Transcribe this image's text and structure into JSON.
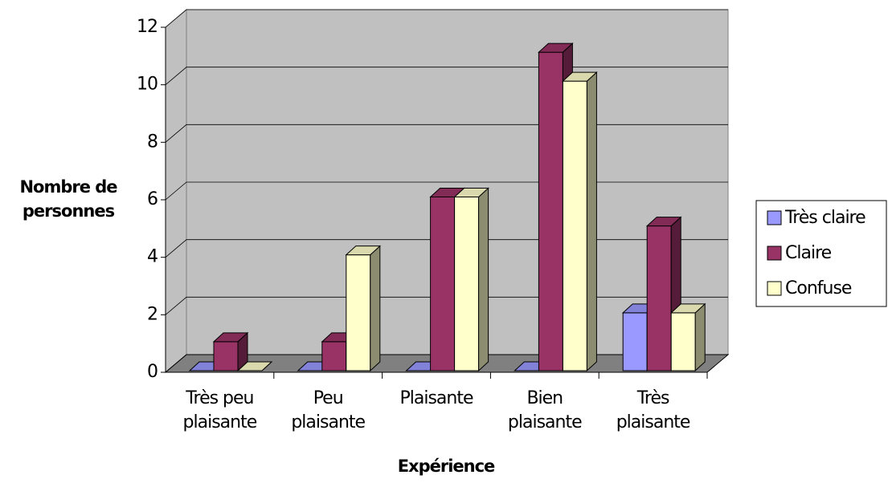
{
  "chart_data": {
    "type": "bar3d",
    "y_label": "Nombre de personnes",
    "x_label": "Expérience",
    "categories": [
      "Très peu plaisante",
      "Peu plaisante",
      "Plaisante",
      "Bien plaisante",
      "Très plaisante"
    ],
    "series": [
      {
        "name": "Très claire",
        "color": "#9999ff",
        "values": [
          0,
          0,
          0,
          0,
          2
        ]
      },
      {
        "name": "Claire",
        "color": "#993366",
        "values": [
          1,
          1,
          6,
          11,
          5
        ]
      },
      {
        "name": "Confuse",
        "color": "#ffffcc",
        "values": [
          0,
          4,
          6,
          10,
          2
        ]
      }
    ],
    "ylim": [
      0,
      12
    ],
    "yticks": [
      0,
      2,
      4,
      6,
      8,
      10,
      12
    ],
    "grid": true,
    "legend": "right"
  }
}
